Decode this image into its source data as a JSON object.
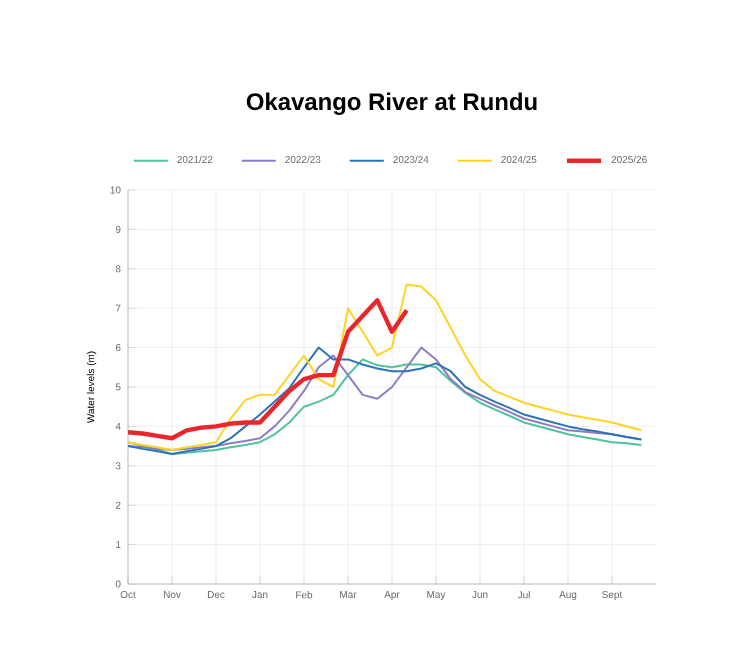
{
  "chart_data": {
    "type": "line",
    "title": "Okavango River at Rundu",
    "ylabel": "Water levels (m)",
    "ylim": [
      0,
      10
    ],
    "yticks": [
      0,
      1,
      2,
      3,
      4,
      5,
      6,
      7,
      8,
      9,
      10
    ],
    "categories": [
      "Oct",
      null,
      null,
      "Nov",
      null,
      null,
      "Dec",
      null,
      null,
      "Jan",
      null,
      null,
      "Feb",
      null,
      null,
      "Mar",
      null,
      null,
      "Apr",
      null,
      null,
      "May",
      null,
      null,
      "Jun",
      null,
      null,
      "Jul",
      null,
      null,
      "Aug",
      null,
      null,
      "Sept",
      null,
      null
    ],
    "grid": true,
    "legend": "top",
    "marker": "none",
    "line_style": "solid",
    "series": [
      {
        "name": "2021/22",
        "color": "#4fc3a1",
        "values": [
          3.6,
          3.5,
          3.4,
          3.3,
          3.33,
          3.37,
          3.4,
          3.47,
          3.53,
          3.6,
          3.8,
          4.1,
          4.5,
          4.63,
          4.8,
          5.3,
          5.7,
          5.55,
          5.5,
          5.57,
          5.57,
          5.5,
          5.15,
          4.85,
          4.6,
          4.43,
          4.27,
          4.1,
          4.0,
          3.9,
          3.8,
          3.73,
          3.67,
          3.6,
          3.57,
          3.53
        ]
      },
      {
        "name": "2022/23",
        "color": "#8e7cc3",
        "values": [
          3.5,
          3.47,
          3.43,
          3.4,
          3.43,
          3.47,
          3.5,
          3.57,
          3.63,
          3.7,
          4.0,
          4.4,
          4.9,
          5.5,
          5.8,
          5.3,
          4.8,
          4.7,
          5.0,
          5.5,
          6.0,
          5.7,
          5.2,
          4.87,
          4.7,
          4.53,
          4.37,
          4.2,
          4.1,
          4.0,
          3.9,
          3.87,
          3.83,
          3.8,
          3.73,
          3.67
        ]
      },
      {
        "name": "2023/24",
        "color": "#2e75b6",
        "values": [
          3.5,
          3.43,
          3.37,
          3.3,
          3.37,
          3.43,
          3.5,
          3.7,
          4.0,
          4.3,
          4.63,
          4.97,
          5.5,
          6.0,
          5.7,
          5.7,
          5.57,
          5.47,
          5.4,
          5.4,
          5.47,
          5.6,
          5.4,
          5.0,
          4.8,
          4.63,
          4.47,
          4.3,
          4.2,
          4.1,
          4.0,
          3.93,
          3.87,
          3.8,
          3.73,
          3.67
        ]
      },
      {
        "name": "2024/25",
        "color": "#ffd324",
        "values": [
          3.6,
          3.53,
          3.47,
          3.4,
          3.47,
          3.53,
          3.6,
          4.2,
          4.67,
          4.8,
          4.8,
          5.3,
          5.8,
          5.2,
          5.0,
          7.0,
          6.4,
          5.8,
          6.0,
          7.6,
          7.55,
          7.2,
          6.5,
          5.8,
          5.2,
          4.9,
          4.75,
          4.6,
          4.5,
          4.4,
          4.3,
          4.23,
          4.17,
          4.1,
          4.0,
          3.9
        ]
      },
      {
        "name": "2025/26",
        "color": "#e8262b",
        "values": [
          3.85,
          3.82,
          3.76,
          3.7,
          3.9,
          3.97,
          4.0,
          4.07,
          4.1,
          4.1,
          4.5,
          4.9,
          5.2,
          5.3,
          5.3,
          6.4,
          6.8,
          7.2,
          6.4,
          6.95,
          null,
          null,
          null,
          null,
          null,
          null,
          null,
          null,
          null,
          null,
          null,
          null,
          null,
          null,
          null,
          null
        ]
      }
    ]
  }
}
